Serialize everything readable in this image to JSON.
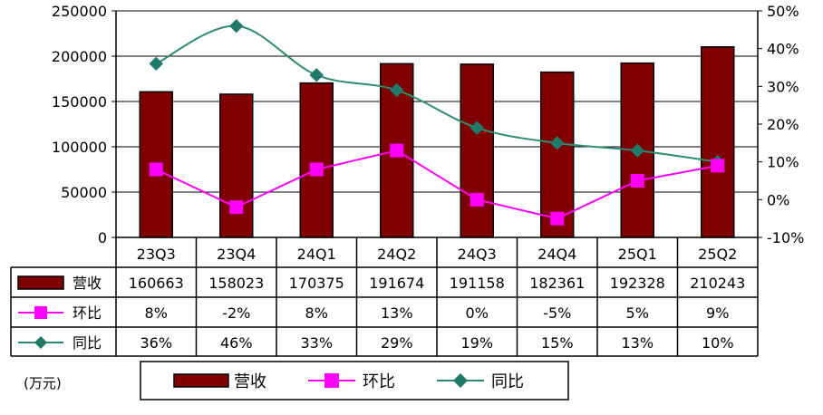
{
  "chart_data": {
    "type": "bar",
    "categories": [
      "23Q3",
      "23Q4",
      "24Q1",
      "24Q2",
      "24Q3",
      "24Q4",
      "25Q1",
      "25Q2"
    ],
    "series": [
      {
        "name": "营收",
        "kind": "bar",
        "axis": "left",
        "color": "#800000",
        "values": [
          160663,
          158023,
          170375,
          191674,
          191158,
          182361,
          192328,
          210243
        ],
        "labels": [
          "160663",
          "158023",
          "170375",
          "191674",
          "191158",
          "182361",
          "192328",
          "210243"
        ]
      },
      {
        "name": "环比",
        "kind": "line",
        "marker": "square",
        "axis": "right",
        "color": "#ff00ff",
        "values": [
          8,
          -2,
          8,
          13,
          0,
          -5,
          5,
          9
        ],
        "labels": [
          "8%",
          "-2%",
          "8%",
          "13%",
          "0%",
          "-5%",
          "5%",
          "9%"
        ]
      },
      {
        "name": "同比",
        "kind": "line",
        "marker": "diamond",
        "axis": "right",
        "color": "#2e8b72",
        "values": [
          36,
          46,
          33,
          29,
          19,
          15,
          13,
          10
        ],
        "labels": [
          "36%",
          "46%",
          "33%",
          "29%",
          "19%",
          "15%",
          "13%",
          "10%"
        ]
      }
    ],
    "y_left": {
      "min": 0,
      "max": 250000,
      "ticks": [
        0,
        50000,
        100000,
        150000,
        200000,
        250000
      ],
      "tick_labels": [
        "0",
        "50000",
        "100000",
        "150000",
        "200000",
        "250000"
      ]
    },
    "y_right": {
      "min": -10,
      "max": 50,
      "ticks": [
        -10,
        0,
        10,
        20,
        30,
        40,
        50
      ],
      "tick_labels": [
        "-10%",
        "0%",
        "10%",
        "20%",
        "30%",
        "40%",
        "50%"
      ]
    },
    "grid": "horizontal",
    "data_table": true,
    "legend": "bottom",
    "unit_label": "(万元)"
  }
}
